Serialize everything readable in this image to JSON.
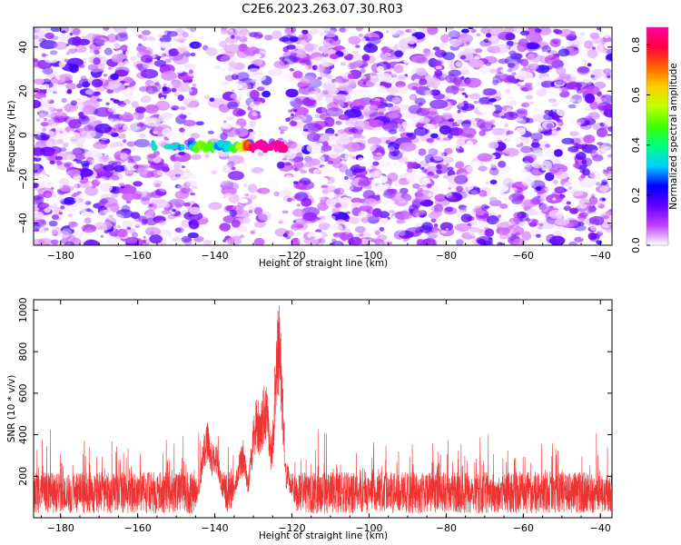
{
  "title": "C2E6.2023.263.07.30.R03",
  "chart_data": [
    {
      "type": "heatmap",
      "xlabel": "Height of straight line (km)",
      "ylabel": "Frequency (Hz)",
      "xlim": [
        -187,
        -37
      ],
      "ylim": [
        -50,
        49
      ],
      "xticks": [
        -180,
        -160,
        -140,
        -120,
        -100,
        -80,
        -60,
        -40
      ],
      "yticks": [
        -40,
        -20,
        0,
        20,
        40
      ],
      "colorbar": {
        "label": "Normalized spectral amplitude",
        "range": [
          0,
          0.87
        ],
        "ticks": [
          0.0,
          0.2,
          0.4,
          0.6,
          0.8
        ],
        "colors": [
          "#ffffff",
          "#c040ff",
          "#6000ff",
          "#0000ff",
          "#00d0ff",
          "#00ff80",
          "#40ff00",
          "#c0ff00",
          "#ffd000",
          "#ff6000",
          "#ff0040",
          "#ff00a0"
        ]
      },
      "background_noise_amplitude_max": 0.2,
      "gap_regions_km": [
        [
          -145,
          -138
        ],
        [
          -128,
          -123
        ]
      ],
      "signal_track": {
        "frequency_hz": -5,
        "height_range_km": [
          -156,
          -122
        ],
        "peak_amplitude": 0.85,
        "peak_height_km": -126
      }
    },
    {
      "type": "line",
      "xlabel": "Height of straight line (km)",
      "ylabel": "SNR (10 * v/v)",
      "xlim": [
        -187,
        -37
      ],
      "ylim": [
        0,
        1050
      ],
      "xticks": [
        -180,
        -160,
        -140,
        -120,
        -100,
        -80,
        -60,
        -40
      ],
      "yticks": [
        200,
        400,
        600,
        800,
        1000
      ],
      "color": "#ee3333",
      "noise_floor": {
        "min": 20,
        "max": 350,
        "typical": 120
      },
      "peaks": [
        {
          "x": -142,
          "y": 460
        },
        {
          "x": -140,
          "y": 380
        },
        {
          "x": -133,
          "y": 350
        },
        {
          "x": -129,
          "y": 580
        },
        {
          "x": -127,
          "y": 650
        },
        {
          "x": -123.5,
          "y": 1040
        },
        {
          "x": -121.5,
          "y": 250
        }
      ]
    }
  ]
}
